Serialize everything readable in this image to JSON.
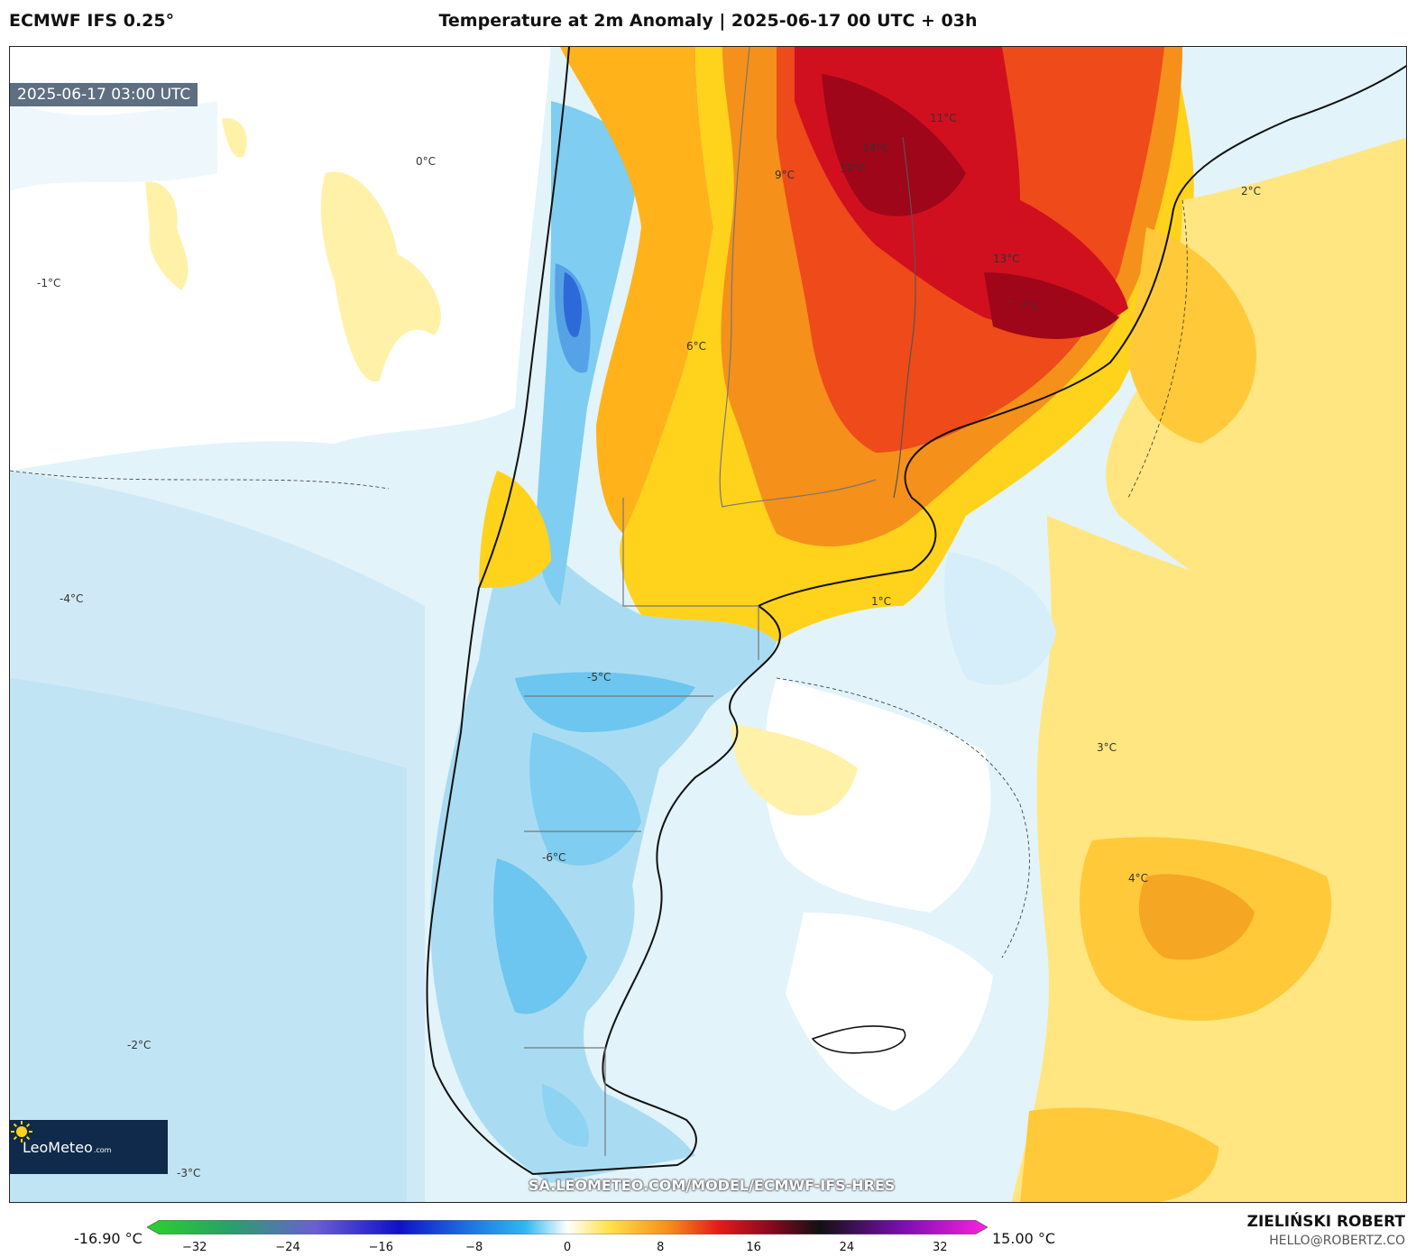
{
  "header": {
    "model": "ECMWF IFS 0.25°",
    "title": "Temperature at 2m Anomaly | 2025-06-17 00 UTC + 03h"
  },
  "map": {
    "timestamp": "2025-06-17 03:00 UTC",
    "logo_text": "LeoMeteo",
    "logo_suffix": ".com",
    "watermark": "SA.LEOMETEO.COM/MODEL/ECMWF-IFS-HRES",
    "contour_labels": [
      "14°C",
      "13°C",
      "12°C",
      "11°C",
      "9°C",
      "7°C",
      "6°C",
      "4°C",
      "3°C",
      "2°C",
      "1°C",
      "0°C",
      "-1°C",
      "-2°C",
      "-3°C",
      "-4°C",
      "-5°C",
      "-6°C"
    ],
    "colors": {
      "hot": "#c80020",
      "warm": "#f07a10",
      "mild": "#ffd21c",
      "neutral": "#ffffff",
      "cool": "#bfe6f5",
      "cold": "#3ab0e8",
      "very_cold": "#1c3fd0"
    }
  },
  "colorbar": {
    "min_label": "-16.90 °C",
    "max_label": "15.00 °C",
    "ticks": [
      "−32",
      "−24",
      "−16",
      "−8",
      "0",
      "8",
      "16",
      "24",
      "32"
    ],
    "tick_values": [
      -32,
      -24,
      -16,
      -8,
      0,
      8,
      16,
      24,
      32
    ],
    "range": [
      -35,
      35
    ]
  },
  "credits": {
    "author": "ZIELIŃSKI ROBERT",
    "email": "HELLO@ROBERTZ.CO"
  }
}
